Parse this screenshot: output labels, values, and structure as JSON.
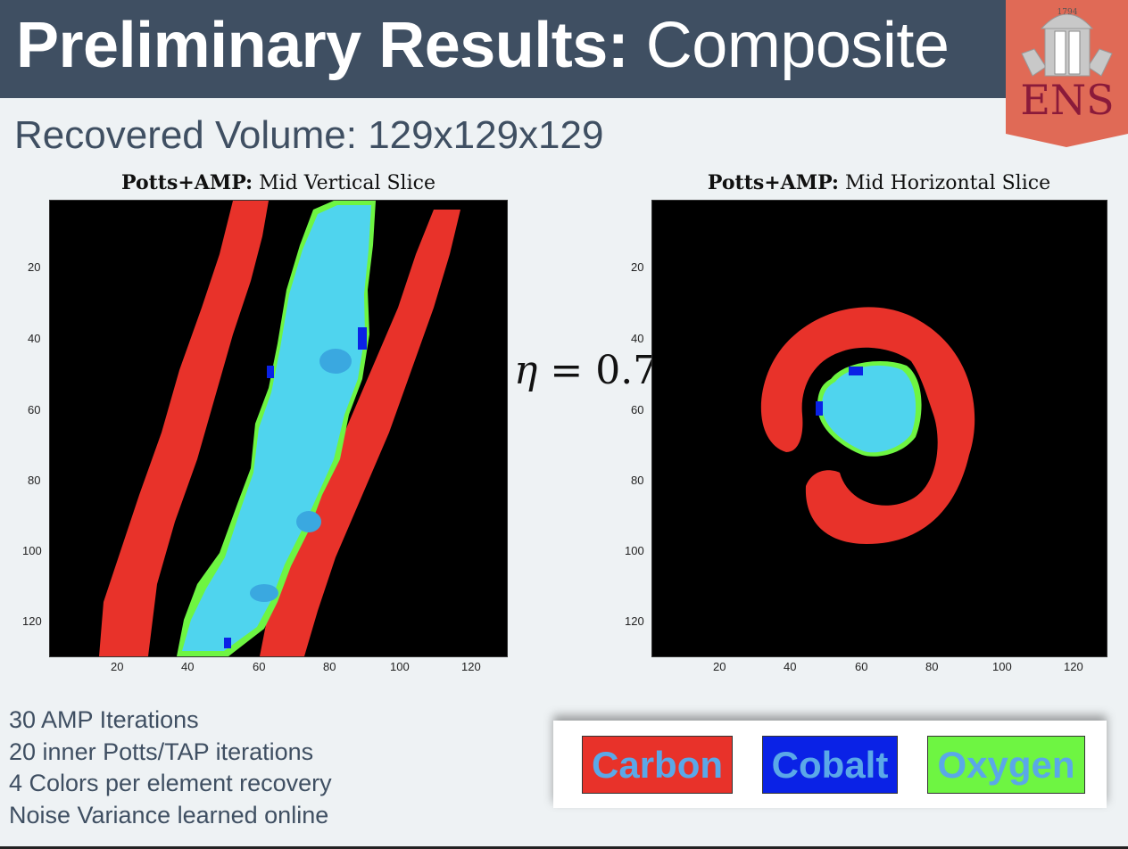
{
  "header": {
    "title_bold": "Preliminary Results:",
    "title_light": "Composite"
  },
  "logo": {
    "year": "1794",
    "text": "ENS",
    "bg_color": "#e06a56",
    "text_color": "#8a1a3a"
  },
  "subtitle": "Recovered Volume: 129x129x129",
  "plots": [
    {
      "title_bold": "Potts+AMP:",
      "title_rest": "Mid Vertical Slice"
    },
    {
      "title_bold": "Potts+AMP:",
      "title_rest": "Mid Horizontal Slice"
    }
  ],
  "axes": {
    "y_ticks": [
      "20",
      "40",
      "60",
      "80",
      "100",
      "120"
    ],
    "x_ticks": [
      "20",
      "40",
      "60",
      "80",
      "100",
      "120"
    ]
  },
  "eta_symbol": "η",
  "eta_value": "= 0.7",
  "notes": [
    "30 AMP Iterations",
    "20 inner Potts/TAP iterations",
    "4 Colors per element recovery",
    "Noise Variance learned online"
  ],
  "legend": [
    {
      "label": "Carbon",
      "color": "#e8322a"
    },
    {
      "label": "Cobalt",
      "color": "#0a22e6"
    },
    {
      "label": "Oxygen",
      "color": "#6ef542"
    }
  ],
  "colors": {
    "header": "#3f4f62",
    "background": "#eef2f4",
    "carbon": "#e8322a",
    "cobalt": "#0a22e6",
    "oxygen": "#6ef542",
    "particle": "#4fd4ee"
  }
}
